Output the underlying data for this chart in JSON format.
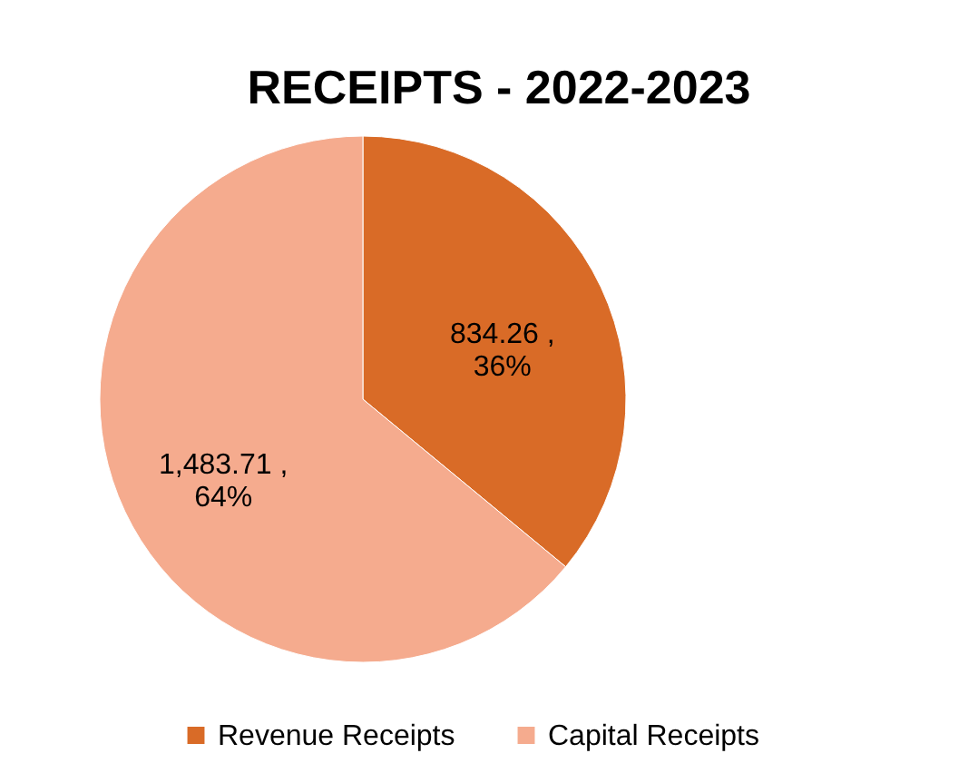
{
  "chart_data": {
    "type": "pie",
    "title": "RECEIPTS - 2022-2023",
    "categories": [
      "Revenue Receipts",
      "Capital Receipts"
    ],
    "values": [
      834.26,
      1483.71
    ],
    "colors": [
      "#d96b27",
      "#f5ab8e"
    ],
    "value_labels": [
      "834.26 ,\n36%",
      "1,483.71 ,\n64%"
    ],
    "legend": "bottom"
  }
}
